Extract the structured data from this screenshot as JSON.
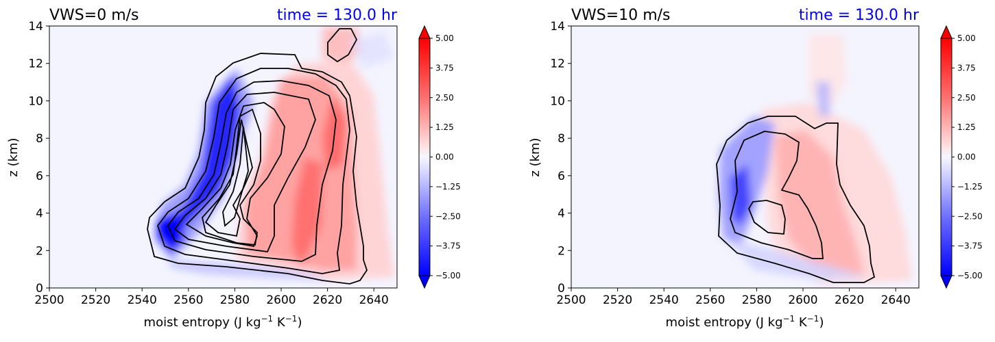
{
  "chart_data": [
    {
      "type": "heatmap",
      "title_left": "VWS=0 m/s",
      "title_right": "time = 130.0 hr",
      "title_right_color": "#0000ff",
      "xlabel": "moist entropy (J kg",
      "xlabel_sup1": "−1",
      "xlabel_mid": " K",
      "xlabel_sup2": "−1",
      "xlabel_end": ")",
      "ylabel": "z (km)",
      "xlim": [
        2500,
        2650
      ],
      "ylim": [
        0,
        14
      ],
      "xticks": [
        "2500",
        "2520",
        "2540",
        "2560",
        "2580",
        "2600",
        "2620",
        "2640"
      ],
      "yticks": [
        "0",
        "2",
        "4",
        "6",
        "8",
        "10",
        "12",
        "14"
      ],
      "colorbar_ticks": [
        "5.00",
        "3.75",
        "2.50",
        "1.25",
        "0.00",
        "−1.25",
        "−2.50",
        "−3.75",
        "−5.00"
      ],
      "colorbar_range": [
        -5,
        5
      ],
      "colormap": "bwr",
      "grid": false
    },
    {
      "type": "heatmap",
      "title_left": "VWS=10 m/s",
      "title_right": "time = 130.0 hr",
      "title_right_color": "#0000ff",
      "xlabel": "moist entropy (J kg",
      "xlabel_sup1": "−1",
      "xlabel_mid": " K",
      "xlabel_sup2": "−1",
      "xlabel_end": ")",
      "ylabel": "z (km)",
      "xlim": [
        2500,
        2650
      ],
      "ylim": [
        0,
        14
      ],
      "xticks": [
        "2500",
        "2520",
        "2540",
        "2560",
        "2580",
        "2600",
        "2620",
        "2640"
      ],
      "yticks": [
        "0",
        "2",
        "4",
        "6",
        "8",
        "10",
        "12",
        "14"
      ],
      "colorbar_ticks": [
        "5.00",
        "3.75",
        "2.50",
        "1.25",
        "0.00",
        "−1.25",
        "−2.50",
        "−3.75",
        "−5.00"
      ],
      "colorbar_range": [
        -5,
        5
      ],
      "colormap": "bwr",
      "grid": false
    }
  ]
}
